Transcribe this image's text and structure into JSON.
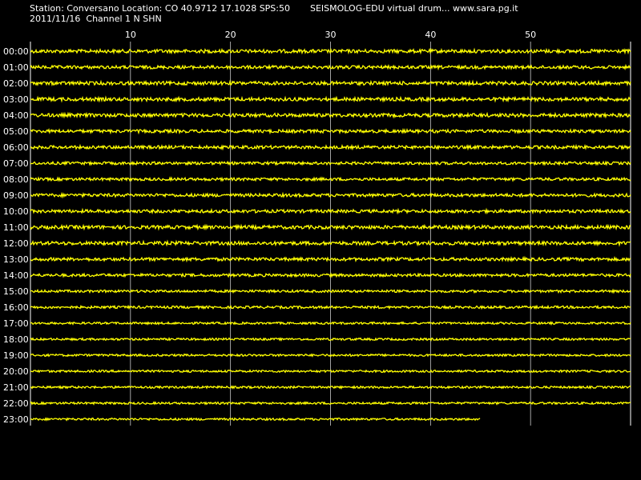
{
  "header": {
    "station_line": "Station: Conversano Location: CO 40.9712 17.1028 SPS:50",
    "app_line": "SEISMOLOG-EDU virtual drum... www.sara.pg.it",
    "date_line": "2011/11/16  Channel 1 N SHN"
  },
  "colors": {
    "background": "#000000",
    "trace": "#ffff00",
    "grid": "#ffffff",
    "text": "#ffffff"
  },
  "chart_data": {
    "type": "line",
    "title": "",
    "xlabel": "",
    "ylabel": "",
    "xlim": [
      0,
      60
    ],
    "x_ticks": [
      10,
      20,
      30,
      40,
      50
    ],
    "grid": true,
    "rows": [
      "00:00",
      "01:00",
      "02:00",
      "03:00",
      "04:00",
      "05:00",
      "06:00",
      "07:00",
      "08:00",
      "09:00",
      "10:00",
      "11:00",
      "12:00",
      "13:00",
      "14:00",
      "15:00",
      "16:00",
      "17:00",
      "18:00",
      "19:00",
      "20:00",
      "21:00",
      "22:00",
      "23:00"
    ],
    "last_row_end_minute": 45,
    "traces": [
      {
        "row": "00:00",
        "amplitude": 1.0
      },
      {
        "row": "01:00",
        "amplitude": 0.9
      },
      {
        "row": "02:00",
        "amplitude": 1.0
      },
      {
        "row": "03:00",
        "amplitude": 1.0
      },
      {
        "row": "04:00",
        "amplitude": 1.0
      },
      {
        "row": "05:00",
        "amplitude": 0.9
      },
      {
        "row": "06:00",
        "amplitude": 0.9
      },
      {
        "row": "07:00",
        "amplitude": 0.8
      },
      {
        "row": "08:00",
        "amplitude": 0.8
      },
      {
        "row": "09:00",
        "amplitude": 0.9
      },
      {
        "row": "10:00",
        "amplitude": 0.9
      },
      {
        "row": "11:00",
        "amplitude": 1.0
      },
      {
        "row": "12:00",
        "amplitude": 1.0
      },
      {
        "row": "13:00",
        "amplitude": 0.9
      },
      {
        "row": "14:00",
        "amplitude": 0.8
      },
      {
        "row": "15:00",
        "amplitude": 0.7
      },
      {
        "row": "16:00",
        "amplitude": 0.7
      },
      {
        "row": "17:00",
        "amplitude": 0.6
      },
      {
        "row": "18:00",
        "amplitude": 0.6
      },
      {
        "row": "19:00",
        "amplitude": 0.6
      },
      {
        "row": "20:00",
        "amplitude": 0.6
      },
      {
        "row": "21:00",
        "amplitude": 0.6
      },
      {
        "row": "22:00",
        "amplitude": 0.6
      },
      {
        "row": "23:00",
        "amplitude": 0.6
      }
    ]
  }
}
